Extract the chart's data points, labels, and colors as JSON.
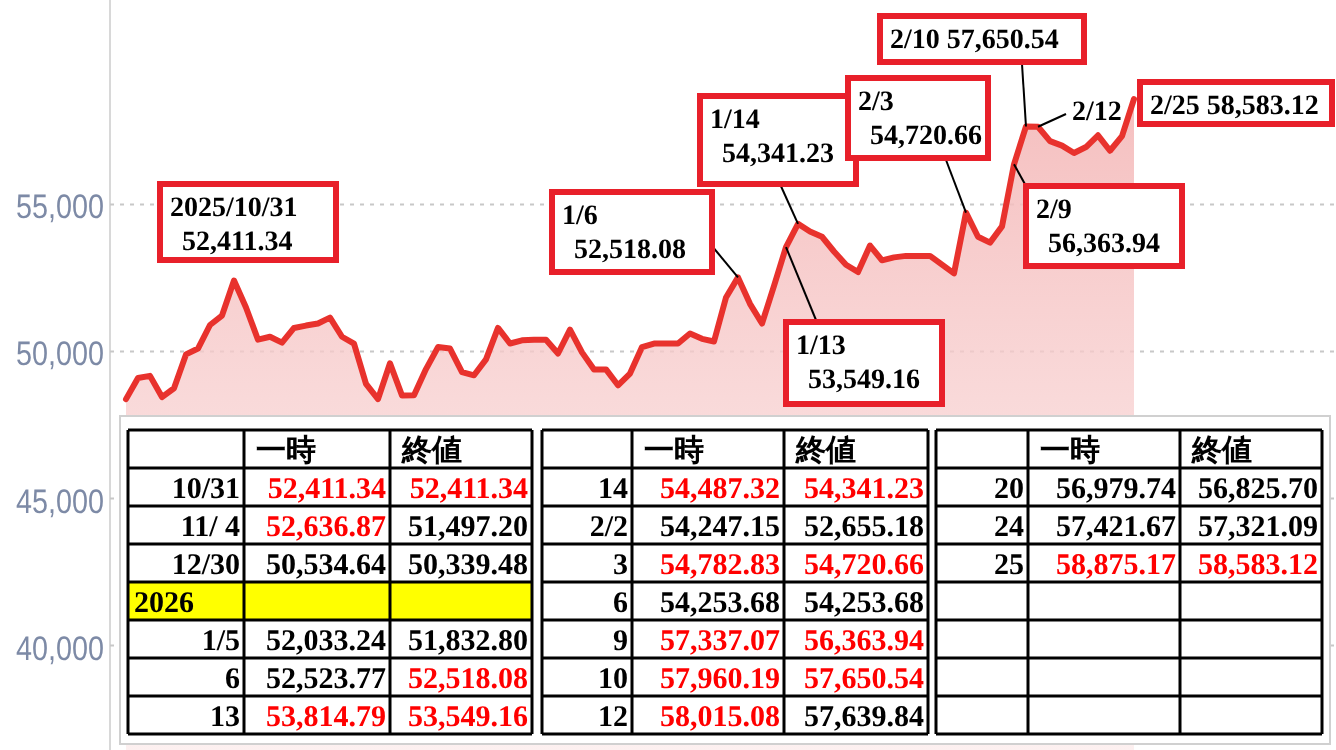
{
  "chart_data": [
    {
      "type": "area",
      "categories": [
        null,
        null,
        null,
        null,
        null,
        null,
        null,
        null,
        null,
        null,
        null,
        null,
        null,
        null,
        null,
        null,
        null,
        null,
        null,
        null,
        null,
        null,
        null,
        null,
        null,
        null,
        null,
        null,
        null,
        null,
        null,
        null,
        null,
        null,
        null,
        null,
        null,
        null,
        null,
        null,
        null,
        null,
        null,
        null,
        null,
        null,
        null,
        null,
        null,
        null,
        null,
        null,
        null,
        null,
        null,
        null,
        null,
        null,
        null,
        null,
        null,
        null,
        null,
        null,
        null,
        null,
        null,
        null,
        null,
        null,
        null,
        null,
        null,
        null,
        null,
        null,
        null,
        null,
        null,
        null,
        null,
        null,
        null,
        null,
        null
      ],
      "series": [
        {
          "color": "#e8322d",
          "values": [
            48380,
            49100,
            49170,
            48450,
            48750,
            49900,
            50100,
            50900,
            51220,
            52411.34,
            51497.2,
            50400,
            50500,
            50300,
            50800,
            50880,
            50950,
            51150,
            50500,
            50270,
            48900,
            48380,
            49600,
            48500,
            48510,
            49400,
            50150,
            50100,
            49300,
            49190,
            49730,
            50800,
            50270,
            50380,
            50400,
            50400,
            49930,
            50740,
            49970,
            49390,
            49390,
            48850,
            49250,
            50150,
            50270,
            50270,
            50270,
            50610,
            50430,
            50339.48,
            51832.8,
            52518.08,
            51620,
            50950,
            52230,
            53549.16,
            54341.23,
            54080,
            53900,
            53400,
            52950,
            52700,
            53600,
            53100,
            53200,
            53250,
            53250,
            53250,
            52950,
            52655.18,
            54720.66,
            53900,
            53700,
            54253.68,
            56363.94,
            57650.54,
            57639.84,
            57150,
            57000,
            56750,
            56950,
            57350,
            56825.7,
            57321.09,
            58583.12
          ]
        }
      ],
      "ylim": [
        36450,
        61950
      ],
      "yticks": [
        {
          "value": 40000,
          "label": "40,000"
        },
        {
          "value": 45000,
          "label": "45,000"
        },
        {
          "value": 50000,
          "label": "50,000"
        },
        {
          "value": 55000,
          "label": "55,000"
        }
      ],
      "grid": "y",
      "annotations": [
        "2025/10/31\n52,411.34",
        "1/6\n52,518.08",
        "1/14\n54,341.23",
        "1/13\n53,549.16",
        "2/3\n54,720.66",
        "2/10 57,650.54",
        "2/12",
        "2/9\n56,363.94",
        "2/25 58,583.12"
      ]
    },
    {
      "type": "other",
      "categories": [
        "一時",
        "終値"
      ],
      "y_categories": [
        "10/31",
        "11/ 4",
        "12/30",
        "2026",
        "1/5",
        "6",
        "13"
      ],
      "cell_labels": [
        [
          "52,411.34",
          "52,411.34"
        ],
        [
          "52,636.87",
          "51,497.20"
        ],
        [
          "50,534.64",
          "50,339.48"
        ],
        [
          null,
          null
        ],
        [
          "52,033.24",
          "51,832.80"
        ],
        [
          "52,523.77",
          "52,518.08"
        ],
        [
          "53,814.79",
          "53,549.16"
        ]
      ],
      "colors": [
        [
          "#ff0000",
          "#ff0000"
        ],
        [
          "#ff0000",
          "#000000"
        ],
        [
          "#000000",
          "#000000"
        ],
        [
          null,
          null
        ],
        [
          "#000000",
          "#000000"
        ],
        [
          "#000000",
          "#ff0000"
        ],
        [
          "#ff0000",
          "#ff0000"
        ]
      ]
    },
    {
      "type": "other",
      "categories": [
        "一時",
        "終値"
      ],
      "y_categories": [
        "14",
        "2/2",
        "3",
        "6",
        "9",
        "10",
        "12"
      ],
      "cell_labels": [
        [
          "54,487.32",
          "54,341.23"
        ],
        [
          "54,247.15",
          "52,655.18"
        ],
        [
          "54,782.83",
          "54,720.66"
        ],
        [
          "54,253.68",
          "54,253.68"
        ],
        [
          "57,337.07",
          "56,363.94"
        ],
        [
          "57,960.19",
          "57,650.54"
        ],
        [
          "58,015.08",
          "57,639.84"
        ]
      ],
      "colors": [
        [
          "#ff0000",
          "#ff0000"
        ],
        [
          "#000000",
          "#000000"
        ],
        [
          "#ff0000",
          "#ff0000"
        ],
        [
          "#000000",
          "#000000"
        ],
        [
          "#ff0000",
          "#ff0000"
        ],
        [
          "#ff0000",
          "#ff0000"
        ],
        [
          "#ff0000",
          "#000000"
        ]
      ]
    },
    {
      "type": "other",
      "categories": [
        "一時",
        "終値"
      ],
      "y_categories": [
        "20",
        "24",
        "25",
        null,
        null,
        null,
        null
      ],
      "cell_labels": [
        [
          "56,979.74",
          "56,825.70"
        ],
        [
          "57,421.67",
          "57,321.09"
        ],
        [
          "58,875.17",
          "58,583.12"
        ],
        [
          null,
          null
        ],
        [
          null,
          null
        ],
        [
          null,
          null
        ],
        [
          null,
          null
        ]
      ],
      "colors": [
        [
          "#000000",
          "#000000"
        ],
        [
          "#000000",
          "#000000"
        ],
        [
          "#ff0000",
          "#ff0000"
        ],
        [
          null,
          null
        ],
        [
          null,
          null
        ],
        [
          null,
          null
        ],
        [
          null,
          null
        ]
      ]
    }
  ]
}
